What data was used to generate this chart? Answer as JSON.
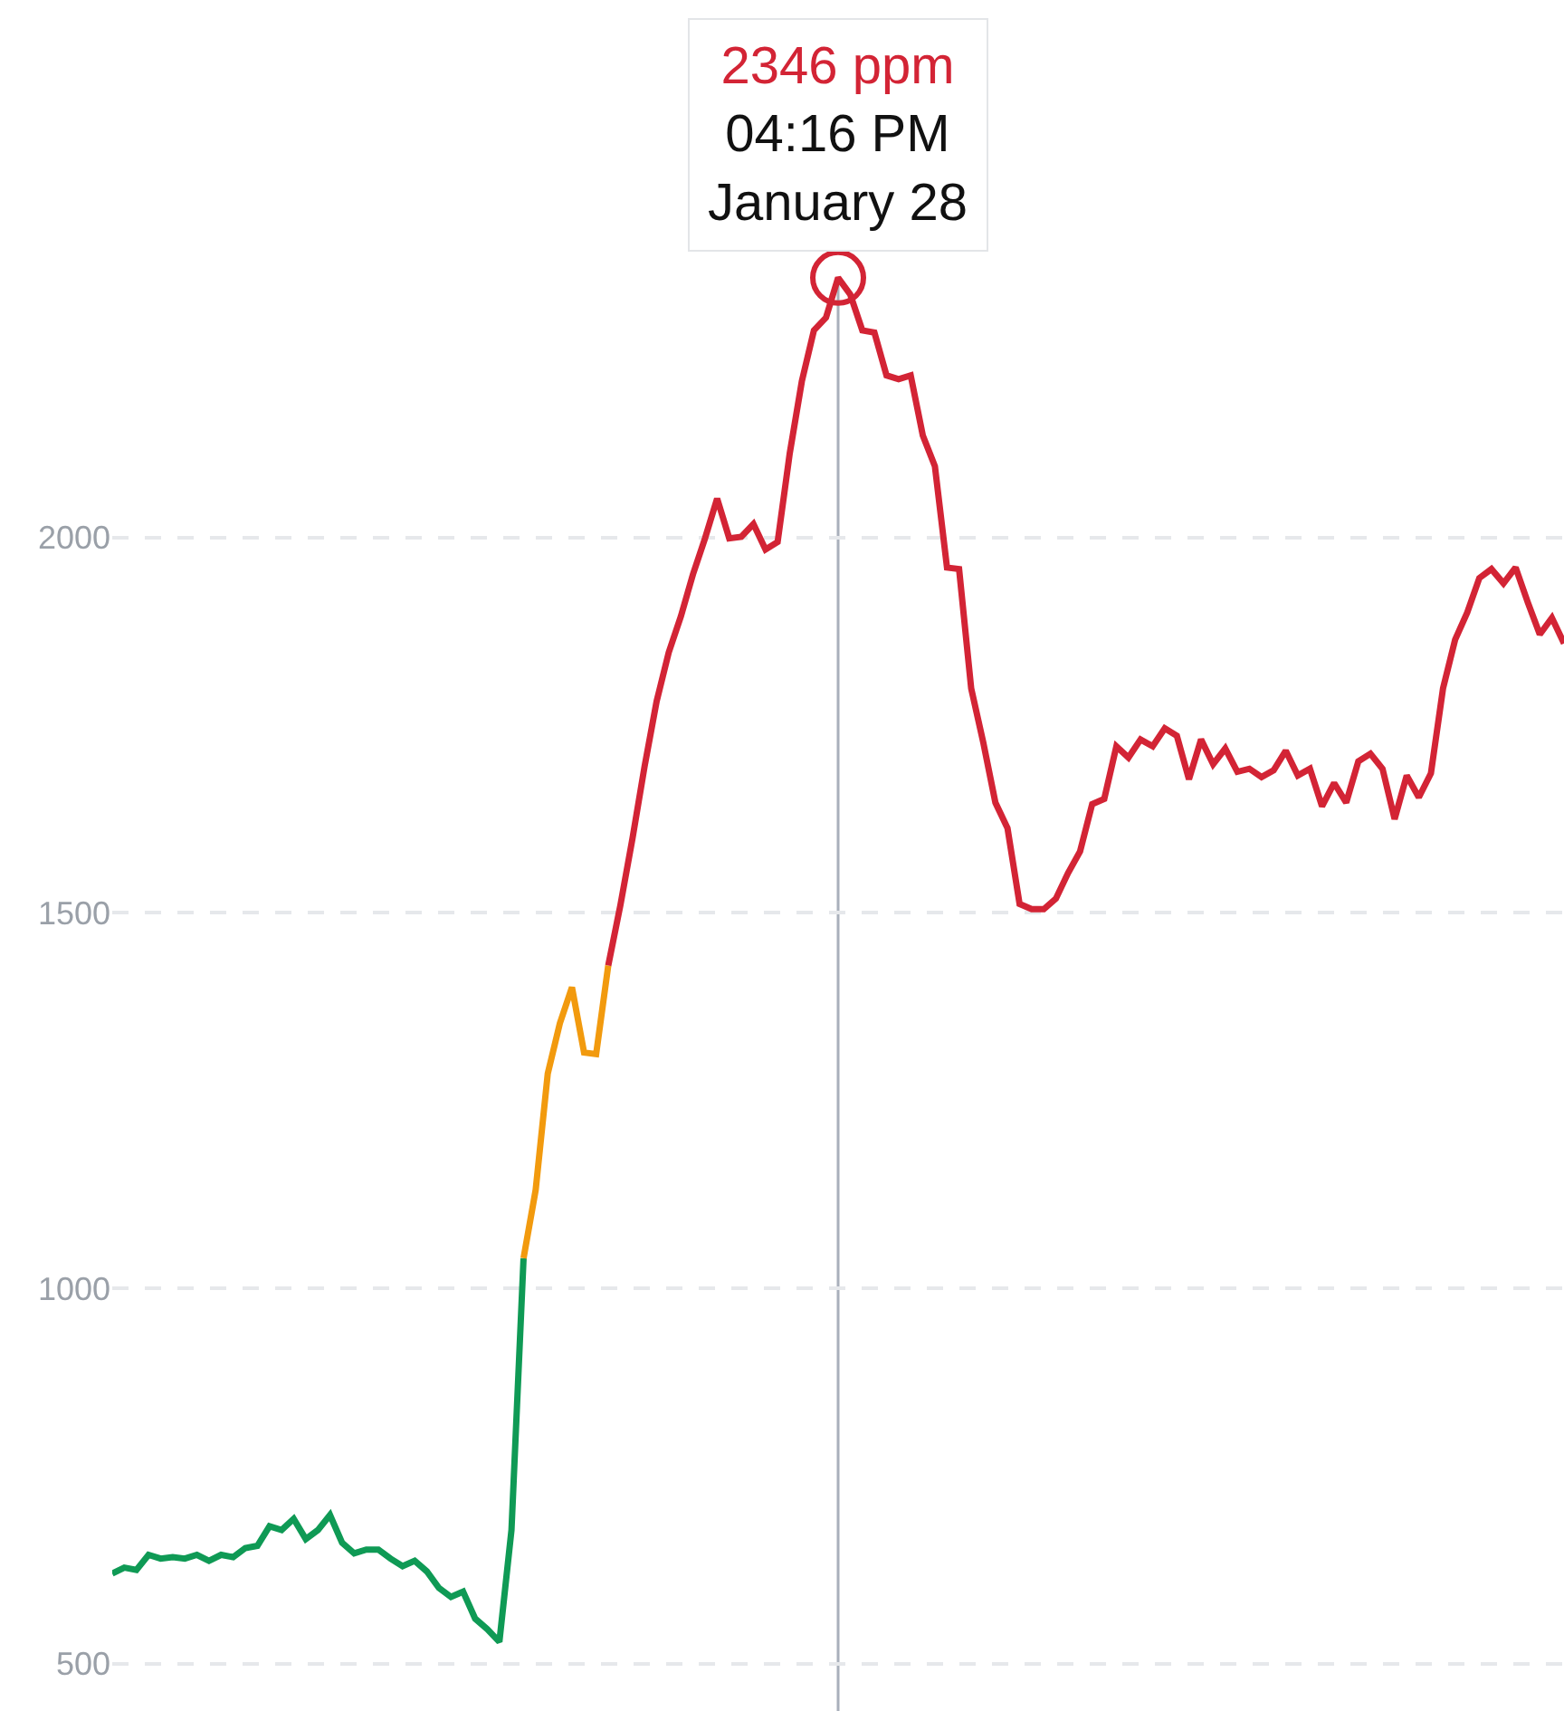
{
  "chart_data": {
    "type": "line",
    "categories": [
      null,
      null,
      null,
      null,
      null,
      null,
      null,
      null,
      null,
      null,
      null,
      null,
      null,
      null,
      null,
      null,
      null,
      null,
      null,
      null,
      null,
      null,
      null,
      null,
      null,
      null,
      null,
      null,
      null,
      null,
      null,
      null,
      null,
      null,
      null,
      null,
      null,
      null,
      null,
      null,
      null,
      null,
      null,
      null,
      null,
      null,
      null,
      null,
      null,
      null,
      null,
      null,
      null,
      null,
      null,
      null,
      null,
      null,
      null,
      null,
      null,
      null,
      null,
      null,
      null,
      null,
      null,
      null,
      null,
      null,
      null,
      null,
      null,
      null,
      null,
      null,
      null,
      null,
      null,
      null,
      null,
      null,
      null,
      null,
      null,
      null,
      null,
      null,
      null,
      null,
      null,
      null,
      null,
      null,
      null,
      null,
      null,
      null,
      null,
      null,
      null,
      null,
      null,
      null,
      null,
      null,
      null,
      null,
      null,
      null,
      null,
      null,
      null,
      null,
      null,
      null,
      null,
      null,
      null,
      null,
      null
    ],
    "series": [
      {
        "color": "#0f9a55",
        "values": [
          620,
          628,
          625,
          645,
          640,
          642,
          640,
          645,
          637,
          645,
          642,
          654,
          657,
          683,
          678,
          693,
          666,
          678,
          698,
          661,
          647,
          652,
          652,
          640,
          630,
          637,
          623,
          601,
          589,
          596,
          560,
          546,
          529,
          678,
          1040,
          null,
          null,
          null,
          null,
          null,
          null,
          null,
          null,
          null,
          null,
          null,
          null,
          null,
          null,
          null,
          null,
          null,
          null,
          null,
          null,
          null,
          null,
          null,
          null,
          null,
          null,
          null,
          null,
          null,
          null,
          null,
          null,
          null,
          null,
          null,
          null,
          null,
          null,
          null,
          null,
          null,
          null,
          null,
          null,
          null,
          null,
          null,
          null,
          null,
          null,
          null,
          null,
          null,
          null,
          null,
          null,
          null,
          null,
          null,
          null,
          null,
          null,
          null,
          null,
          null,
          null,
          null,
          null,
          null,
          null,
          null,
          null,
          null,
          null,
          null,
          null,
          null,
          null,
          null,
          null,
          null,
          null,
          null,
          null,
          null,
          null
        ]
      },
      {
        "color": "#f29a0e",
        "values": [
          null,
          null,
          null,
          null,
          null,
          null,
          null,
          null,
          null,
          null,
          null,
          null,
          null,
          null,
          null,
          null,
          null,
          null,
          null,
          null,
          null,
          null,
          null,
          null,
          null,
          null,
          null,
          null,
          null,
          null,
          null,
          null,
          null,
          null,
          1040,
          1131,
          1286,
          1353,
          1401,
          1314,
          1312,
          1430,
          null,
          null,
          null,
          null,
          null,
          null,
          null,
          null,
          null,
          null,
          null,
          null,
          null,
          null,
          null,
          null,
          null,
          null,
          null,
          null,
          null,
          null,
          null,
          null,
          null,
          null,
          null,
          null,
          null,
          null,
          null,
          null,
          null,
          null,
          null,
          null,
          null,
          null,
          null,
          null,
          null,
          null,
          null,
          null,
          null,
          null,
          null,
          null,
          null,
          null,
          null,
          null,
          null,
          null,
          null,
          null,
          null,
          null,
          null,
          null,
          null,
          null,
          null,
          null,
          null,
          null,
          null,
          null,
          null,
          null,
          null,
          null,
          null,
          null,
          null,
          null,
          null,
          null,
          null
        ]
      },
      {
        "color": "#d32435",
        "values": [
          null,
          null,
          null,
          null,
          null,
          null,
          null,
          null,
          null,
          null,
          null,
          null,
          null,
          null,
          null,
          null,
          null,
          null,
          null,
          null,
          null,
          null,
          null,
          null,
          null,
          null,
          null,
          null,
          null,
          null,
          null,
          null,
          null,
          null,
          null,
          null,
          null,
          null,
          null,
          null,
          null,
          1430,
          1510,
          1599,
          1695,
          1782,
          1847,
          1895,
          1951,
          1999,
          2052,
          1999,
          2001,
          2018,
          1984,
          1994,
          2112,
          2208,
          2276,
          2293,
          2346,
          2324,
          2276,
          2273,
          2216,
          2211,
          2216,
          2136,
          2095,
          1960,
          1958,
          1799,
          1727,
          1647,
          1613,
          1512,
          1505,
          1505,
          1519,
          1553,
          1582,
          1645,
          1652,
          1722,
          1707,
          1731,
          1722,
          1746,
          1736,
          1678,
          1731,
          1698,
          1719,
          1688,
          1692,
          1681,
          1690,
          1716,
          1683,
          1692,
          1642,
          1673,
          1647,
          1702,
          1712,
          1692,
          1625,
          1683,
          1654,
          1686,
          1799,
          1864,
          1900,
          1946,
          1958,
          1939,
          1960,
          1914,
          1871,
          1893,
          1859
        ]
      }
    ],
    "ylim": [
      437,
      2716
    ],
    "yticks": [
      500,
      1000,
      1500,
      2000
    ],
    "grid": "y",
    "marker": "none",
    "line_style": "solid",
    "annotations": [
      {
        "text": "2346 ppm\n04:16 PM\nJanuary 28",
        "y": 2346
      }
    ]
  }
}
